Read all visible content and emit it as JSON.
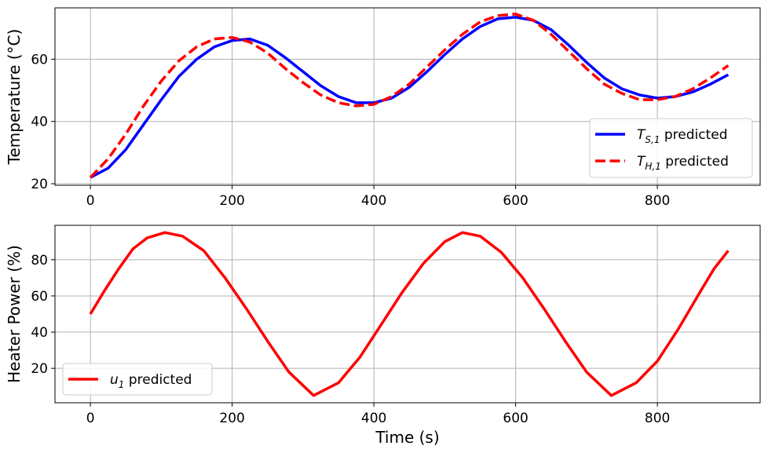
{
  "colors": {
    "blue": "#0000ff",
    "red": "#ff0000",
    "grid": "#b0b0b0"
  },
  "chart_data": [
    {
      "type": "line",
      "xlabel": "",
      "ylabel": "Temperature (°C)",
      "xlim": [
        -50,
        945
      ],
      "ylim": [
        19.5,
        76.5
      ],
      "xticks": [
        0,
        200,
        400,
        600,
        800
      ],
      "yticks": [
        20,
        40,
        60
      ],
      "grid": true,
      "legend": "lower-right",
      "series": [
        {
          "name": "T_S,1 predicted",
          "name_main": "T",
          "name_sub": "S,1",
          "name_rest": " predicted",
          "color": "#0000ff",
          "style": "solid",
          "x": [
            0,
            25,
            50,
            75,
            100,
            125,
            150,
            175,
            200,
            225,
            250,
            275,
            300,
            325,
            350,
            375,
            400,
            425,
            450,
            475,
            500,
            525,
            550,
            575,
            600,
            625,
            650,
            675,
            700,
            725,
            750,
            775,
            800,
            825,
            850,
            875,
            900
          ],
          "y": [
            22,
            25,
            31,
            39,
            47,
            54.5,
            60,
            64,
            66,
            66.5,
            64.5,
            60.5,
            56,
            51.5,
            48,
            46,
            46,
            47.5,
            51,
            56,
            61.5,
            66.5,
            70.5,
            73,
            73.5,
            72.5,
            69.5,
            64.5,
            59,
            54,
            50.5,
            48.5,
            47.5,
            48,
            49.5,
            52,
            55
          ]
        },
        {
          "name": "T_H,1 predicted",
          "name_main": "T",
          "name_sub": "H,1",
          "name_rest": " predicted",
          "color": "#ff0000",
          "style": "dashed",
          "x": [
            0,
            25,
            50,
            75,
            100,
            125,
            150,
            175,
            200,
            225,
            250,
            275,
            300,
            325,
            350,
            375,
            400,
            425,
            450,
            475,
            500,
            525,
            550,
            575,
            600,
            625,
            650,
            675,
            700,
            725,
            750,
            775,
            800,
            825,
            850,
            875,
            900
          ],
          "y": [
            22,
            28,
            36,
            45,
            53,
            59.5,
            64,
            66.5,
            67,
            65.5,
            62,
            57,
            52.5,
            48.5,
            46,
            45,
            45.5,
            48,
            52,
            57.5,
            63,
            68,
            72,
            74,
            74.5,
            72.5,
            68,
            62.5,
            57,
            52,
            49,
            47,
            47,
            48,
            50.5,
            54,
            58
          ]
        }
      ]
    },
    {
      "type": "line",
      "xlabel": "Time (s)",
      "ylabel": "Heater Power (%)",
      "xlim": [
        -50,
        945
      ],
      "ylim": [
        1,
        99
      ],
      "xticks": [
        0,
        200,
        400,
        600,
        800
      ],
      "yticks": [
        20,
        40,
        60,
        80
      ],
      "grid": true,
      "legend": "lower-left",
      "series": [
        {
          "name": "u_1 predicted",
          "name_main": "u",
          "name_sub": "1",
          "name_rest": " predicted",
          "color": "#ff0000",
          "style": "solid",
          "x": [
            0,
            20,
            40,
            60,
            80,
            105,
            130,
            160,
            190,
            220,
            250,
            280,
            315,
            350,
            380,
            410,
            440,
            470,
            500,
            525,
            550,
            580,
            610,
            640,
            670,
            700,
            735,
            770,
            800,
            830,
            860,
            880,
            900
          ],
          "y": [
            50,
            63,
            75,
            86,
            92,
            95,
            93,
            85,
            70,
            53,
            35,
            18,
            5,
            12,
            26,
            44,
            62,
            78,
            90,
            95,
            93,
            84,
            70,
            53,
            35,
            18,
            5,
            12,
            24,
            42,
            62,
            75,
            85
          ]
        }
      ]
    }
  ]
}
